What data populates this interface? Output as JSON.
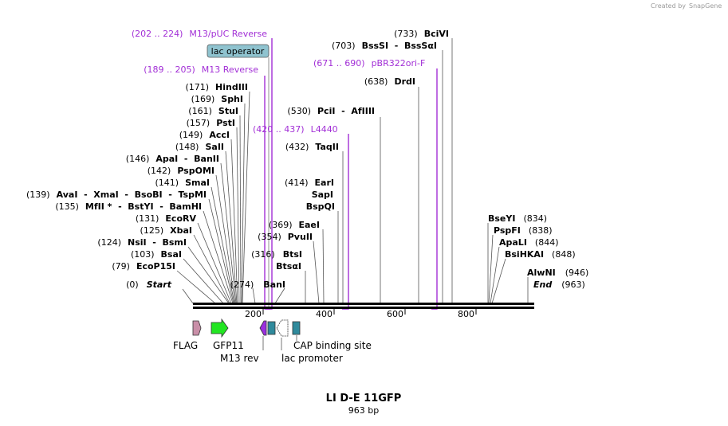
{
  "header": {
    "credit": "Created by",
    "brand": "SnapGene"
  },
  "map": {
    "title": "LI D-E 11GFP",
    "length_label": "963 bp",
    "ticks": [
      "200",
      "400",
      "600",
      "800"
    ],
    "sites": [
      {
        "pos": "(0)",
        "name": "Start",
        "italic": true
      },
      {
        "pos": "(79)",
        "name": "EcoP15I"
      },
      {
        "pos": "(103)",
        "name": "BsaI"
      },
      {
        "pos": "(124)",
        "name": "NsiI  -  BsmI"
      },
      {
        "pos": "(125)",
        "name": "XbaI"
      },
      {
        "pos": "(131)",
        "name": "EcoRV"
      },
      {
        "pos": "(135)",
        "name": "MfII *  -  BstYI  -  BamHI"
      },
      {
        "pos": "(139)",
        "name": "AvaI  -  XmaI  -  BsoBI  -  TspMI"
      },
      {
        "pos": "(141)",
        "name": "SmaI"
      },
      {
        "pos": "(142)",
        "name": "PspOMI"
      },
      {
        "pos": "(146)",
        "name": "ApaI  -  BanII"
      },
      {
        "pos": "(148)",
        "name": "SaII"
      },
      {
        "pos": "(149)",
        "name": "AccI"
      },
      {
        "pos": "(157)",
        "name": "PstI"
      },
      {
        "pos": "(161)",
        "name": "StuI"
      },
      {
        "pos": "(169)",
        "name": "SphI"
      },
      {
        "pos": "(171)",
        "name": "HindIII"
      },
      {
        "pos": "(274)",
        "name": "BanI"
      },
      {
        "pos": "(316)",
        "name": "BtsI"
      },
      {
        "pos": "",
        "name": "BtsαI"
      },
      {
        "pos": "(354)",
        "name": "PvuII"
      },
      {
        "pos": "(369)",
        "name": "EaeI"
      },
      {
        "pos": "(414)",
        "name": "EarI"
      },
      {
        "pos": "",
        "name": "SapI"
      },
      {
        "pos": "",
        "name": "BspQI"
      },
      {
        "pos": "(432)",
        "name": "TaqII"
      },
      {
        "pos": "(530)",
        "name": "PciI  -  AfIIII"
      },
      {
        "pos": "(638)",
        "name": "DrdI"
      },
      {
        "pos": "(703)",
        "name": "BssSI  -  BssSαI"
      },
      {
        "pos": "(733)",
        "name": "BciVI"
      },
      {
        "pos": "(834)",
        "name": "BseYI"
      },
      {
        "pos": "(838)",
        "name": "PspFI"
      },
      {
        "pos": "(844)",
        "name": "ApaLI"
      },
      {
        "pos": "(848)",
        "name": "BsiHKAI"
      },
      {
        "pos": "(946)",
        "name": "AlwNI"
      },
      {
        "pos": "(963)",
        "name": "End",
        "italic": true
      }
    ],
    "primers": [
      {
        "range": "(202 .. 224)",
        "name": "M13/pUC Reverse"
      },
      {
        "range": "(189 .. 205)",
        "name": "M13 Reverse"
      },
      {
        "range": "(420 .. 437)",
        "name": "L4440"
      },
      {
        "range": "(671 .. 690)",
        "name": "pBR322ori-F"
      }
    ],
    "operator_label": "lac operator",
    "features": [
      {
        "name": "FLAG",
        "color": "#c98fa8"
      },
      {
        "name": "GFP11",
        "color": "#22e622"
      },
      {
        "name": "M13 rev",
        "color": "#9b2fe0"
      },
      {
        "name": "lac promoter",
        "color": "#ffffff"
      },
      {
        "name": "CAP binding site",
        "color": "#2f8a9c"
      }
    ],
    "colors": {
      "primer": "#a22fd6",
      "operator": "#8fc3cf",
      "backbone": "#000000"
    }
  }
}
